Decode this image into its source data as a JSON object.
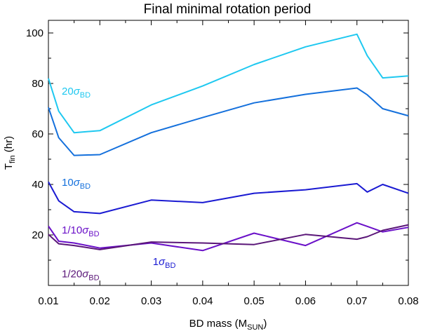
{
  "chart_data": {
    "type": "line",
    "title": "Final minimal rotation period",
    "xlabel": {
      "main": "BD mass (M",
      "sub": "SUN",
      "end": ")"
    },
    "ylabel": {
      "main": "T",
      "sub": "fin",
      "end": " (hr)"
    },
    "xlim": [
      0.01,
      0.08
    ],
    "ylim": [
      0,
      105
    ],
    "xticks": [
      0.01,
      0.02,
      0.03,
      0.04,
      0.05,
      0.06,
      0.07,
      0.08
    ],
    "xtick_labels": [
      "0.01",
      "0.02",
      "0.03",
      "0.04",
      "0.05",
      "0.06",
      "0.07",
      "0.08"
    ],
    "yticks": [
      20,
      40,
      60,
      80,
      100
    ],
    "ytick_labels": [
      "20",
      "40",
      "60",
      "80",
      "100"
    ],
    "x": [
      0.01,
      0.012,
      0.015,
      0.02,
      0.03,
      0.04,
      0.05,
      0.06,
      0.07,
      0.072,
      0.075,
      0.08
    ],
    "series": [
      {
        "name": "20σBD",
        "label_main": "20",
        "label_sigma": "σ",
        "label_sub": "BD",
        "color": "#1ec8f0",
        "label_at": [
          0.0126,
          75.5
        ],
        "values": [
          82,
          69,
          60.5,
          61.3,
          71.5,
          79,
          87.5,
          94.5,
          99.5,
          91,
          82.2,
          83
        ]
      },
      {
        "name": "10σBD",
        "label_main": "10",
        "label_sigma": "σ",
        "label_sub": "BD",
        "color": "#1470dc",
        "label_at": [
          0.0126,
          39.5
        ],
        "values": [
          70.5,
          58.5,
          51.5,
          51.8,
          60.5,
          66.5,
          72.3,
          75.7,
          78.2,
          75.5,
          70,
          67.2
        ]
      },
      {
        "name": "1σBD",
        "label_main": "1",
        "label_sigma": "σ",
        "label_sub": "BD",
        "color": "#1a1ad2",
        "label_at": [
          0.0303,
          8
        ],
        "values": [
          41,
          33.5,
          29.2,
          28.5,
          33.8,
          32.8,
          36.5,
          37.9,
          40.3,
          37,
          40,
          36.5
        ]
      },
      {
        "name": "1/10σBD",
        "label_main": "1/10",
        "label_sigma": "σ",
        "label_sub": "BD",
        "color": "#6a10c8",
        "label_at": [
          0.0126,
          20.5
        ],
        "values": [
          23.5,
          17.5,
          16.8,
          14.8,
          16.8,
          13.8,
          20.7,
          15.8,
          24.8,
          23.4,
          21.2,
          23
        ]
      },
      {
        "name": "1/20σBD",
        "label_main": "1/20",
        "label_sigma": "σ",
        "label_sub": "BD",
        "color": "#5a1678",
        "label_at": [
          0.0126,
          3.2
        ],
        "values": [
          20.2,
          16.5,
          15.8,
          14.2,
          17.2,
          16.8,
          16.2,
          20.2,
          18.3,
          19.3,
          21.8,
          24
        ]
      }
    ]
  }
}
